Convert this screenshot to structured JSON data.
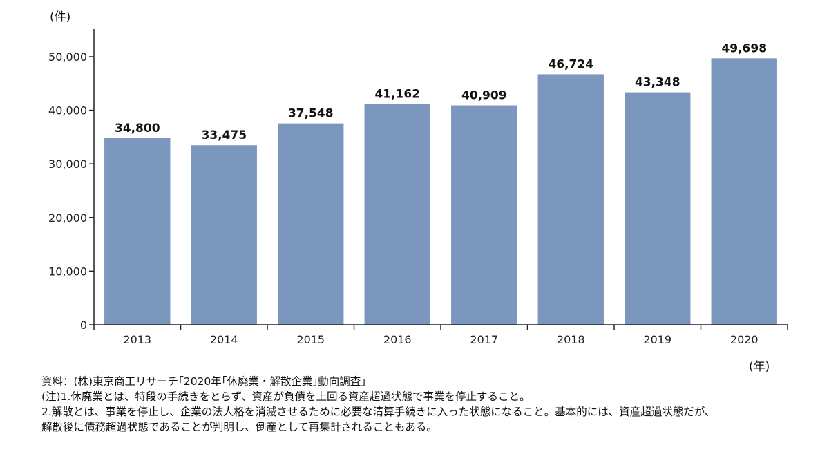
{
  "chart_data": {
    "type": "bar",
    "categories": [
      "2013",
      "2014",
      "2015",
      "2016",
      "2017",
      "2018",
      "2019",
      "2020"
    ],
    "values": [
      34800,
      33475,
      37548,
      41162,
      40909,
      46724,
      43348,
      49698
    ],
    "data_labels": [
      "34,800",
      "33,475",
      "37,548",
      "41,162",
      "40,909",
      "46,724",
      "43,348",
      "49,698"
    ],
    "y_unit": "(件)",
    "x_unit": "(年)",
    "ylim": [
      0,
      55000
    ],
    "yticks": [
      0,
      10000,
      20000,
      30000,
      40000,
      50000
    ],
    "ytick_labels": [
      "0",
      "10,000",
      "20,000",
      "30,000",
      "40,000",
      "50,000"
    ],
    "grid": false,
    "bar_color": "#7b97bd"
  },
  "notes": {
    "source": "資料：(株)東京商工リサーチ｢2020年｢休廃業・解散企業｣動向調査｣",
    "note1": "(注)1.休廃業とは、特段の手続きをとらず、資産が負債を上回る資産超過状態で事業を停止すること。",
    "note2": "2.解散とは、事業を停止し、企業の法人格を消滅させるために必要な清算手続きに入った状態になること。基本的には、資産超過状態だが、",
    "note3": "解散後に債務超過状態であることが判明し、倒産として再集計されることもある。"
  }
}
